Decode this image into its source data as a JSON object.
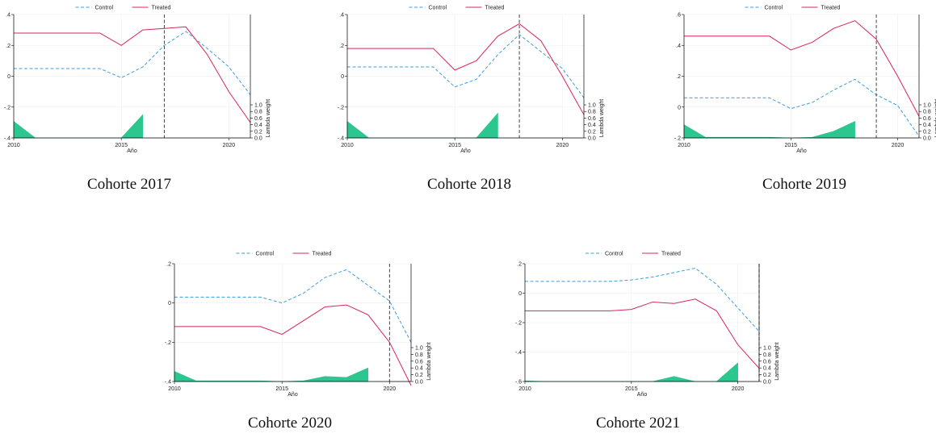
{
  "legend": {
    "control": "Control",
    "treated": "Treated"
  },
  "colors": {
    "control": "#3b9de0",
    "treated": "#d8245a",
    "weights": "#2cc68f",
    "vline": "#444444",
    "grid": "#eeeeee"
  },
  "captions": [
    "Cohorte 2017",
    "Cohorte 2018",
    "Cohorte 2019",
    "Cohorte 2020",
    "Cohorte 2021"
  ],
  "chart_data": [
    {
      "type": "line",
      "caption": "Cohorte 2017",
      "xlabel": "Año",
      "y2label": "Lambda weight",
      "x": [
        2010,
        2011,
        2012,
        2013,
        2014,
        2015,
        2016,
        2017,
        2018,
        2019,
        2020,
        2021
      ],
      "series": [
        {
          "name": "Control",
          "style": "dashed",
          "values": [
            0.05,
            0.05,
            0.05,
            0.05,
            0.05,
            -0.01,
            0.06,
            0.2,
            0.29,
            0.18,
            0.06,
            -0.12
          ]
        },
        {
          "name": "Treated",
          "style": "solid",
          "values": [
            0.28,
            0.28,
            0.28,
            0.28,
            0.28,
            0.2,
            0.3,
            0.31,
            0.32,
            0.14,
            -0.1,
            -0.3
          ]
        }
      ],
      "ylim": [
        -0.4,
        0.4
      ],
      "yticks": [
        -0.4,
        -0.2,
        0,
        0.2,
        0.4
      ],
      "yticklabels": [
        "-.4",
        "-.2",
        "0",
        ".2",
        ".4"
      ],
      "xticks": [
        2010,
        2015,
        2020
      ],
      "vline": 2017,
      "lambda_weights": {
        "x": [
          2010,
          2011,
          2012,
          2013,
          2014,
          2015,
          2016
        ],
        "values": [
          0.5,
          0,
          0,
          0,
          0,
          0,
          0.7
        ]
      },
      "y2ticks": [
        0,
        0.2,
        0.4,
        0.6,
        0.8,
        1.0
      ],
      "y2ticklabels": [
        "0.0",
        "0.2",
        "0.4",
        "0.6",
        "0.8",
        "1.0"
      ],
      "legend_position": "top"
    },
    {
      "type": "line",
      "caption": "Cohorte 2018",
      "xlabel": "Año",
      "y2label": "Lambda weight",
      "x": [
        2010,
        2011,
        2012,
        2013,
        2014,
        2015,
        2016,
        2017,
        2018,
        2019,
        2020,
        2021
      ],
      "series": [
        {
          "name": "Control",
          "style": "dashed",
          "values": [
            0.06,
            0.06,
            0.06,
            0.06,
            0.06,
            -0.07,
            -0.02,
            0.14,
            0.27,
            0.16,
            0.05,
            -0.14
          ]
        },
        {
          "name": "Treated",
          "style": "solid",
          "values": [
            0.18,
            0.18,
            0.18,
            0.18,
            0.18,
            0.04,
            0.1,
            0.26,
            0.34,
            0.23,
            0.0,
            -0.25
          ]
        }
      ],
      "ylim": [
        -0.4,
        0.4
      ],
      "yticks": [
        -0.4,
        -0.2,
        0,
        0.2,
        0.4
      ],
      "yticklabels": [
        "-.4",
        "-.2",
        "0",
        ".2",
        ".4"
      ],
      "xticks": [
        2010,
        2015,
        2020
      ],
      "vline": 2018,
      "lambda_weights": {
        "x": [
          2010,
          2011,
          2012,
          2013,
          2014,
          2015,
          2016,
          2017
        ],
        "values": [
          0.5,
          0,
          0,
          0,
          0,
          0,
          0,
          0.75
        ]
      },
      "y2ticks": [
        0,
        0.2,
        0.4,
        0.6,
        0.8,
        1.0
      ],
      "y2ticklabels": [
        "0.0",
        "0.2",
        "0.4",
        "0.6",
        "0.8",
        "1.0"
      ],
      "legend_position": "top"
    },
    {
      "type": "line",
      "caption": "Cohorte 2019",
      "xlabel": "Año",
      "y2label": "Lambda weight",
      "x": [
        2010,
        2011,
        2012,
        2013,
        2014,
        2015,
        2016,
        2017,
        2018,
        2019,
        2020,
        2021
      ],
      "series": [
        {
          "name": "Control",
          "style": "dashed",
          "values": [
            0.06,
            0.06,
            0.06,
            0.06,
            0.06,
            -0.01,
            0.03,
            0.11,
            0.18,
            0.08,
            0.01,
            -0.19
          ]
        },
        {
          "name": "Treated",
          "style": "solid",
          "values": [
            0.46,
            0.46,
            0.46,
            0.46,
            0.46,
            0.37,
            0.42,
            0.51,
            0.56,
            0.44,
            0.2,
            -0.06
          ]
        }
      ],
      "ylim": [
        -0.2,
        0.6
      ],
      "yticks": [
        -0.2,
        0,
        0.2,
        0.4,
        0.6
      ],
      "yticklabels": [
        "-.2",
        "0",
        ".2",
        ".4",
        ".6"
      ],
      "xticks": [
        2010,
        2015,
        2020
      ],
      "vline": 2019,
      "lambda_weights": {
        "x": [
          2010,
          2011,
          2012,
          2013,
          2014,
          2015,
          2016,
          2017,
          2018
        ],
        "values": [
          0.4,
          0.02,
          0.02,
          0.02,
          0.02,
          0,
          0.02,
          0.2,
          0.5
        ]
      },
      "y2ticks": [
        0,
        0.2,
        0.4,
        0.6,
        0.8,
        1.0
      ],
      "y2ticklabels": [
        "0.0",
        "0.2",
        "0.4",
        "0.6",
        "0.8",
        "1.0"
      ],
      "legend_position": "top"
    },
    {
      "type": "line",
      "caption": "Cohorte 2020",
      "xlabel": "Año",
      "y2label": "Lambda weight",
      "x": [
        2010,
        2011,
        2012,
        2013,
        2014,
        2015,
        2016,
        2017,
        2018,
        2019,
        2020,
        2021
      ],
      "series": [
        {
          "name": "Control",
          "style": "dashed",
          "values": [
            0.03,
            0.03,
            0.03,
            0.03,
            0.03,
            0.0,
            0.05,
            0.13,
            0.17,
            0.09,
            0.01,
            -0.2
          ]
        },
        {
          "name": "Treated",
          "style": "solid",
          "values": [
            -0.12,
            -0.12,
            -0.12,
            -0.12,
            -0.12,
            -0.16,
            -0.09,
            -0.02,
            -0.01,
            -0.06,
            -0.2,
            -0.42
          ]
        }
      ],
      "ylim": [
        -0.4,
        0.2
      ],
      "yticks": [
        -0.4,
        -0.2,
        0,
        0.2
      ],
      "yticklabels": [
        "-.4",
        "-.2",
        "0",
        ".2"
      ],
      "xticks": [
        2010,
        2015,
        2020
      ],
      "vline": 2020,
      "lambda_weights": {
        "x": [
          2010,
          2011,
          2012,
          2013,
          2014,
          2015,
          2016,
          2017,
          2018,
          2019
        ],
        "values": [
          0.3,
          0.02,
          0.02,
          0.02,
          0.02,
          0,
          0.02,
          0.15,
          0.12,
          0.4
        ]
      },
      "y2ticks": [
        0,
        0.2,
        0.4,
        0.6,
        0.8,
        1.0
      ],
      "y2ticklabels": [
        "0.0",
        "0.2",
        "0.4",
        "0.6",
        "0.8",
        "1.0"
      ],
      "legend_position": "top"
    },
    {
      "type": "line",
      "caption": "Cohorte 2021",
      "xlabel": "Año",
      "y2label": "Lambda weight",
      "x": [
        2010,
        2011,
        2012,
        2013,
        2014,
        2015,
        2016,
        2017,
        2018,
        2019,
        2020,
        2021
      ],
      "series": [
        {
          "name": "Control",
          "style": "dashed",
          "values": [
            0.08,
            0.08,
            0.08,
            0.08,
            0.08,
            0.09,
            0.11,
            0.14,
            0.17,
            0.06,
            -0.1,
            -0.26
          ]
        },
        {
          "name": "Treated",
          "style": "solid",
          "values": [
            -0.12,
            -0.12,
            -0.12,
            -0.12,
            -0.12,
            -0.11,
            -0.06,
            -0.07,
            -0.04,
            -0.12,
            -0.35,
            -0.51
          ]
        }
      ],
      "ylim": [
        -0.6,
        0.2
      ],
      "yticks": [
        -0.6,
        -0.4,
        -0.2,
        0,
        0.2
      ],
      "yticklabels": [
        "-.6",
        "-.4",
        "-.2",
        "0",
        ".2"
      ],
      "xticks": [
        2010,
        2015,
        2020
      ],
      "vline": 2021,
      "lambda_weights": {
        "x": [
          2010,
          2011,
          2012,
          2013,
          2014,
          2015,
          2016,
          2017,
          2018,
          2019,
          2020
        ],
        "values": [
          0.02,
          0,
          0,
          0,
          0,
          0,
          0,
          0.15,
          0,
          0,
          0.55
        ]
      },
      "y2ticks": [
        0,
        0.2,
        0.4,
        0.6,
        0.8,
        1.0
      ],
      "y2ticklabels": [
        "0.0",
        "0.2",
        "0.4",
        "0.6",
        "0.8",
        "1.0"
      ],
      "legend_position": "top"
    }
  ]
}
